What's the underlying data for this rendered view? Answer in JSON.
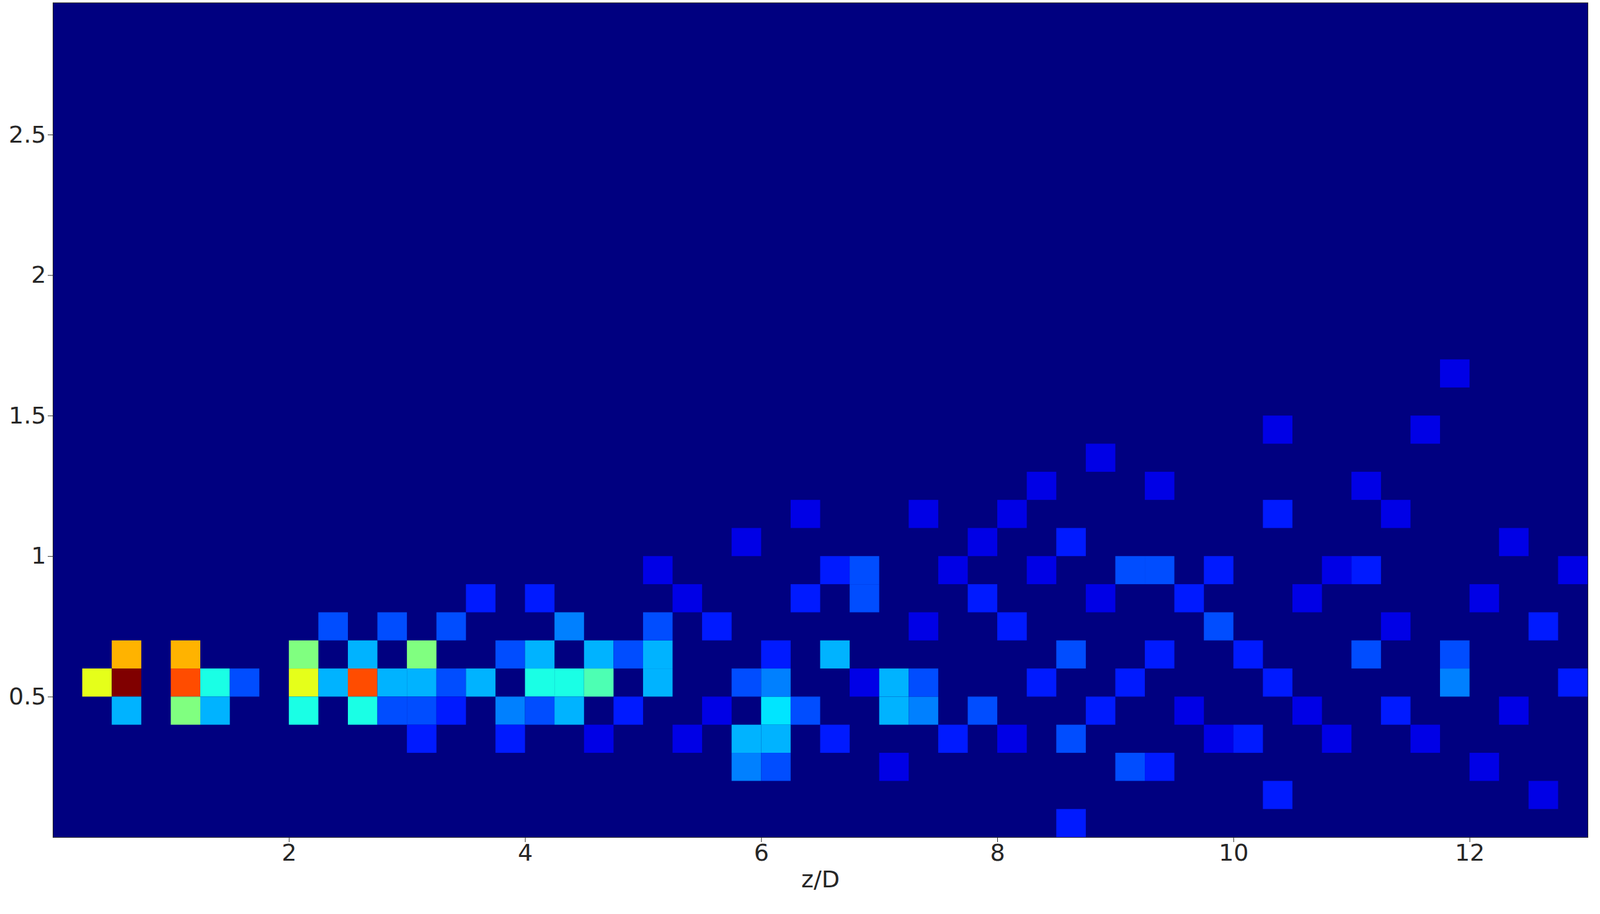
{
  "chart_data": {
    "type": "heatmap",
    "x_label": "z/D",
    "xlim": [
      0,
      13
    ],
    "xticks": [
      2,
      4,
      6,
      8,
      10,
      12
    ],
    "ylim": [
      0,
      2.97
    ],
    "yticks": [
      0.5,
      1,
      1.5,
      2,
      2.5
    ],
    "zlim": [
      0,
      1
    ],
    "color": "jet",
    "cell_width": 0.25,
    "cell_height": 0.1,
    "cells": [
      [
        0.375,
        0.55,
        0.6
      ],
      [
        0.625,
        0.55,
        1.0
      ],
      [
        0.625,
        0.65,
        0.7
      ],
      [
        0.625,
        0.45,
        0.3
      ],
      [
        1.125,
        0.55,
        0.8
      ],
      [
        1.125,
        0.65,
        0.7
      ],
      [
        1.125,
        0.45,
        0.5
      ],
      [
        1.375,
        0.55,
        0.4
      ],
      [
        1.375,
        0.45,
        0.3
      ],
      [
        1.625,
        0.55,
        0.2
      ],
      [
        2.125,
        0.55,
        0.6
      ],
      [
        2.125,
        0.65,
        0.5
      ],
      [
        2.125,
        0.45,
        0.4
      ],
      [
        2.375,
        0.55,
        0.3
      ],
      [
        2.375,
        0.75,
        0.2
      ],
      [
        2.625,
        0.55,
        0.8
      ],
      [
        2.625,
        0.45,
        0.4
      ],
      [
        2.625,
        0.65,
        0.3
      ],
      [
        2.875,
        0.55,
        0.3
      ],
      [
        2.875,
        0.45,
        0.2
      ],
      [
        2.875,
        0.75,
        0.2
      ],
      [
        3.125,
        0.65,
        0.5
      ],
      [
        3.125,
        0.55,
        0.3
      ],
      [
        3.125,
        0.45,
        0.2
      ],
      [
        3.125,
        0.35,
        0.15
      ],
      [
        3.375,
        0.55,
        0.2
      ],
      [
        3.375,
        0.75,
        0.2
      ],
      [
        3.375,
        0.45,
        0.15
      ],
      [
        3.625,
        0.55,
        0.3
      ],
      [
        3.625,
        0.85,
        0.15
      ],
      [
        3.875,
        0.45,
        0.25
      ],
      [
        3.875,
        0.65,
        0.2
      ],
      [
        3.875,
        0.35,
        0.15
      ],
      [
        4.125,
        0.55,
        0.4
      ],
      [
        4.125,
        0.65,
        0.3
      ],
      [
        4.125,
        0.85,
        0.15
      ],
      [
        4.125,
        0.45,
        0.2
      ],
      [
        4.375,
        0.55,
        0.4
      ],
      [
        4.375,
        0.45,
        0.3
      ],
      [
        4.375,
        0.75,
        0.25
      ],
      [
        4.625,
        0.55,
        0.45
      ],
      [
        4.625,
        0.65,
        0.3
      ],
      [
        4.625,
        0.35,
        0.1
      ],
      [
        4.875,
        0.65,
        0.2
      ],
      [
        4.875,
        0.45,
        0.15
      ],
      [
        5.125,
        0.65,
        0.3
      ],
      [
        5.125,
        0.55,
        0.3
      ],
      [
        5.125,
        0.75,
        0.2
      ],
      [
        5.125,
        0.95,
        0.1
      ],
      [
        5.375,
        0.35,
        0.1
      ],
      [
        5.375,
        0.85,
        0.1
      ],
      [
        5.625,
        0.75,
        0.15
      ],
      [
        5.625,
        0.45,
        0.1
      ],
      [
        5.875,
        0.55,
        0.2
      ],
      [
        5.875,
        0.25,
        0.25
      ],
      [
        5.875,
        0.35,
        0.3
      ],
      [
        5.875,
        1.05,
        0.1
      ],
      [
        6.125,
        0.45,
        0.35
      ],
      [
        6.125,
        0.35,
        0.3
      ],
      [
        6.125,
        0.55,
        0.25
      ],
      [
        6.125,
        0.25,
        0.2
      ],
      [
        6.125,
        0.65,
        0.15
      ],
      [
        6.375,
        0.45,
        0.2
      ],
      [
        6.375,
        0.85,
        0.15
      ],
      [
        6.375,
        1.15,
        0.1
      ],
      [
        6.625,
        0.65,
        0.3
      ],
      [
        6.625,
        0.35,
        0.15
      ],
      [
        6.625,
        0.95,
        0.15
      ],
      [
        6.875,
        0.85,
        0.2
      ],
      [
        6.875,
        0.95,
        0.2
      ],
      [
        6.875,
        0.55,
        0.1
      ],
      [
        7.125,
        0.45,
        0.3
      ],
      [
        7.125,
        0.55,
        0.3
      ],
      [
        7.125,
        0.25,
        0.1
      ],
      [
        7.375,
        0.45,
        0.25
      ],
      [
        7.375,
        0.55,
        0.2
      ],
      [
        7.375,
        0.75,
        0.1
      ],
      [
        7.375,
        1.15,
        0.1
      ],
      [
        7.625,
        0.35,
        0.15
      ],
      [
        7.625,
        0.95,
        0.1
      ],
      [
        7.875,
        0.45,
        0.2
      ],
      [
        7.875,
        0.85,
        0.15
      ],
      [
        7.875,
        1.05,
        0.1
      ],
      [
        8.125,
        0.75,
        0.15
      ],
      [
        8.125,
        0.35,
        0.1
      ],
      [
        8.125,
        1.15,
        0.1
      ],
      [
        8.375,
        0.55,
        0.15
      ],
      [
        8.375,
        0.95,
        0.1
      ],
      [
        8.375,
        1.25,
        0.1
      ],
      [
        8.625,
        0.65,
        0.2
      ],
      [
        8.625,
        0.35,
        0.2
      ],
      [
        8.625,
        1.05,
        0.15
      ],
      [
        8.625,
        0.05,
        0.15
      ],
      [
        8.875,
        0.45,
        0.15
      ],
      [
        8.875,
        0.85,
        0.1
      ],
      [
        8.875,
        1.35,
        0.1
      ],
      [
        9.125,
        0.95,
        0.2
      ],
      [
        9.125,
        0.25,
        0.2
      ],
      [
        9.125,
        0.55,
        0.15
      ],
      [
        9.375,
        0.95,
        0.2
      ],
      [
        9.375,
        0.65,
        0.15
      ],
      [
        9.375,
        0.25,
        0.15
      ],
      [
        9.375,
        1.25,
        0.1
      ],
      [
        9.625,
        0.45,
        0.1
      ],
      [
        9.625,
        0.85,
        0.15
      ],
      [
        9.875,
        0.75,
        0.2
      ],
      [
        9.875,
        0.95,
        0.15
      ],
      [
        9.875,
        0.35,
        0.1
      ],
      [
        10.125,
        0.35,
        0.15
      ],
      [
        10.125,
        0.65,
        0.15
      ],
      [
        10.375,
        1.15,
        0.15
      ],
      [
        10.375,
        0.55,
        0.15
      ],
      [
        10.375,
        0.15,
        0.15
      ],
      [
        10.375,
        1.45,
        0.1
      ],
      [
        10.625,
        0.85,
        0.1
      ],
      [
        10.625,
        0.45,
        0.1
      ],
      [
        10.875,
        0.95,
        0.1
      ],
      [
        10.875,
        0.35,
        0.1
      ],
      [
        11.125,
        0.95,
        0.15
      ],
      [
        11.125,
        0.65,
        0.2
      ],
      [
        11.125,
        1.25,
        0.1
      ],
      [
        11.375,
        0.45,
        0.15
      ],
      [
        11.375,
        0.75,
        0.1
      ],
      [
        11.375,
        1.15,
        0.1
      ],
      [
        11.625,
        0.35,
        0.1
      ],
      [
        11.625,
        1.45,
        0.1
      ],
      [
        11.875,
        0.55,
        0.25
      ],
      [
        11.875,
        0.65,
        0.2
      ],
      [
        11.875,
        1.65,
        0.1
      ],
      [
        12.125,
        0.85,
        0.1
      ],
      [
        12.125,
        0.25,
        0.1
      ],
      [
        12.375,
        1.05,
        0.1
      ],
      [
        12.375,
        0.45,
        0.1
      ],
      [
        12.625,
        0.15,
        0.1
      ],
      [
        12.625,
        0.75,
        0.15
      ],
      [
        12.875,
        0.55,
        0.15
      ],
      [
        12.875,
        0.95,
        0.1
      ]
    ]
  }
}
